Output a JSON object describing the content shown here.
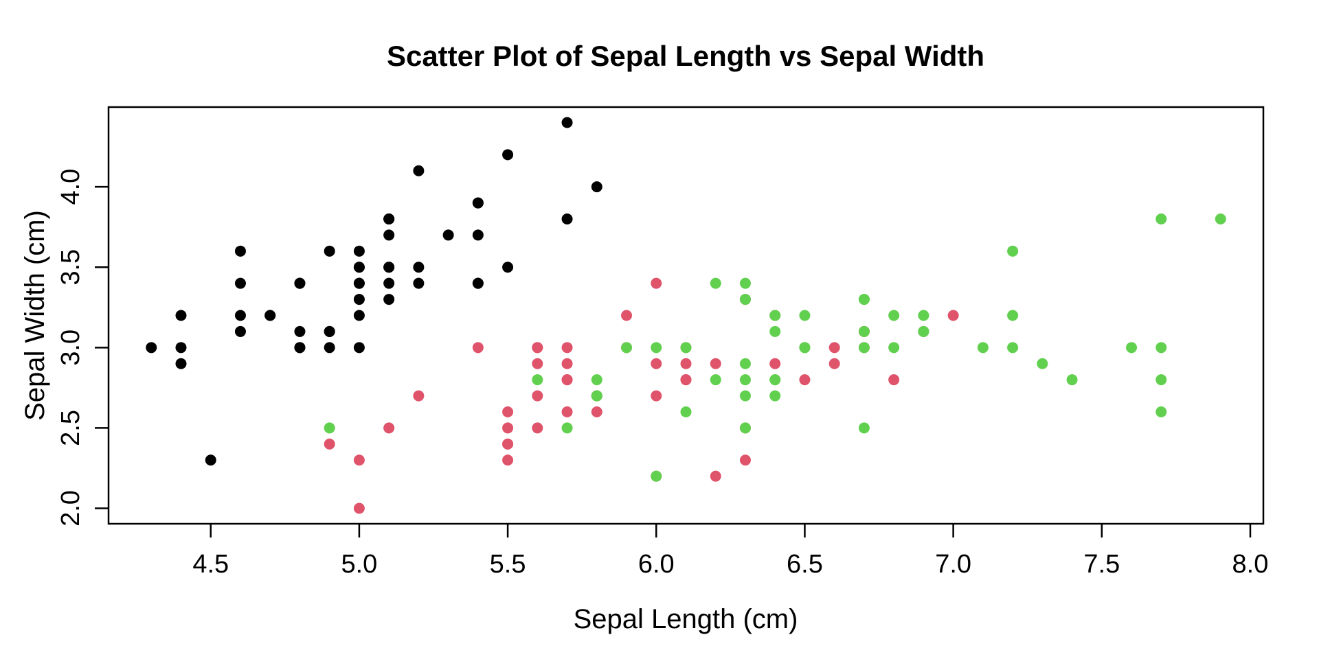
{
  "chart_data": {
    "type": "scatter",
    "title": "Scatter Plot of Sepal Length vs Sepal Width",
    "xlabel": "Sepal Length (cm)",
    "ylabel": "Sepal Width (cm)",
    "xlim": [
      4.156,
      8.044
    ],
    "ylim": [
      1.904,
      4.496
    ],
    "x_ticks": [
      4.5,
      5.0,
      5.5,
      6.0,
      6.5,
      7.0,
      7.5,
      8.0
    ],
    "y_ticks": [
      2.0,
      2.5,
      3.0,
      3.5,
      4.0
    ],
    "grid": false,
    "legend": "none",
    "marker": "filled-circle",
    "series": [
      {
        "name": "black",
        "color": "#000000",
        "points": [
          [
            5.1,
            3.5
          ],
          [
            4.9,
            3.0
          ],
          [
            4.7,
            3.2
          ],
          [
            4.6,
            3.1
          ],
          [
            5.0,
            3.6
          ],
          [
            5.4,
            3.9
          ],
          [
            4.6,
            3.4
          ],
          [
            5.0,
            3.4
          ],
          [
            4.4,
            2.9
          ],
          [
            4.9,
            3.1
          ],
          [
            5.4,
            3.7
          ],
          [
            4.8,
            3.4
          ],
          [
            4.8,
            3.0
          ],
          [
            4.3,
            3.0
          ],
          [
            5.8,
            4.0
          ],
          [
            5.7,
            4.4
          ],
          [
            5.4,
            3.9
          ],
          [
            5.1,
            3.5
          ],
          [
            5.7,
            3.8
          ],
          [
            5.1,
            3.8
          ],
          [
            5.4,
            3.4
          ],
          [
            5.1,
            3.7
          ],
          [
            4.6,
            3.6
          ],
          [
            5.1,
            3.3
          ],
          [
            4.8,
            3.4
          ],
          [
            5.0,
            3.0
          ],
          [
            5.0,
            3.4
          ],
          [
            5.2,
            3.5
          ],
          [
            5.2,
            3.4
          ],
          [
            4.7,
            3.2
          ],
          [
            4.8,
            3.1
          ],
          [
            5.4,
            3.4
          ],
          [
            5.2,
            4.1
          ],
          [
            5.5,
            4.2
          ],
          [
            4.9,
            3.1
          ],
          [
            5.0,
            3.2
          ],
          [
            5.5,
            3.5
          ],
          [
            4.9,
            3.6
          ],
          [
            4.4,
            3.0
          ],
          [
            5.1,
            3.4
          ],
          [
            5.0,
            3.5
          ],
          [
            4.5,
            2.3
          ],
          [
            4.4,
            3.2
          ],
          [
            5.0,
            3.5
          ],
          [
            5.1,
            3.8
          ],
          [
            4.8,
            3.0
          ],
          [
            5.1,
            3.8
          ],
          [
            4.6,
            3.2
          ],
          [
            5.3,
            3.7
          ],
          [
            5.0,
            3.3
          ]
        ]
      },
      {
        "name": "red",
        "color": "#DF536B",
        "points": [
          [
            7.0,
            3.2
          ],
          [
            6.4,
            3.2
          ],
          [
            6.9,
            3.1
          ],
          [
            5.5,
            2.3
          ],
          [
            6.5,
            2.8
          ],
          [
            5.7,
            2.8
          ],
          [
            6.3,
            3.3
          ],
          [
            4.9,
            2.4
          ],
          [
            6.6,
            2.9
          ],
          [
            5.2,
            2.7
          ],
          [
            5.0,
            2.0
          ],
          [
            5.9,
            3.0
          ],
          [
            6.0,
            2.2
          ],
          [
            6.1,
            2.9
          ],
          [
            5.6,
            2.9
          ],
          [
            6.7,
            3.1
          ],
          [
            5.6,
            3.0
          ],
          [
            5.8,
            2.7
          ],
          [
            6.2,
            2.2
          ],
          [
            5.6,
            2.5
          ],
          [
            5.9,
            3.2
          ],
          [
            6.1,
            2.8
          ],
          [
            6.3,
            2.5
          ],
          [
            6.1,
            2.8
          ],
          [
            6.4,
            2.9
          ],
          [
            6.6,
            3.0
          ],
          [
            6.8,
            2.8
          ],
          [
            6.7,
            3.0
          ],
          [
            6.0,
            2.9
          ],
          [
            5.7,
            2.6
          ],
          [
            5.5,
            2.4
          ],
          [
            5.5,
            2.4
          ],
          [
            5.8,
            2.7
          ],
          [
            6.0,
            2.7
          ],
          [
            5.4,
            3.0
          ],
          [
            6.0,
            3.4
          ],
          [
            6.7,
            3.1
          ],
          [
            6.3,
            2.3
          ],
          [
            5.6,
            3.0
          ],
          [
            5.5,
            2.5
          ],
          [
            5.5,
            2.6
          ],
          [
            6.1,
            3.0
          ],
          [
            5.8,
            2.6
          ],
          [
            5.0,
            2.3
          ],
          [
            5.6,
            2.7
          ],
          [
            5.7,
            3.0
          ],
          [
            5.7,
            2.9
          ],
          [
            6.2,
            2.9
          ],
          [
            5.1,
            2.5
          ],
          [
            5.7,
            2.8
          ]
        ]
      },
      {
        "name": "green",
        "color": "#61D04F",
        "points": [
          [
            6.3,
            3.3
          ],
          [
            5.8,
            2.7
          ],
          [
            7.1,
            3.0
          ],
          [
            6.3,
            2.9
          ],
          [
            6.5,
            3.0
          ],
          [
            7.6,
            3.0
          ],
          [
            4.9,
            2.5
          ],
          [
            7.3,
            2.9
          ],
          [
            6.7,
            2.5
          ],
          [
            7.2,
            3.6
          ],
          [
            6.5,
            3.2
          ],
          [
            6.4,
            2.7
          ],
          [
            6.8,
            3.0
          ],
          [
            5.7,
            2.5
          ],
          [
            5.8,
            2.8
          ],
          [
            6.4,
            3.2
          ],
          [
            6.5,
            3.0
          ],
          [
            7.7,
            3.8
          ],
          [
            7.7,
            2.6
          ],
          [
            6.0,
            2.2
          ],
          [
            6.9,
            3.2
          ],
          [
            5.6,
            2.8
          ],
          [
            7.7,
            2.8
          ],
          [
            6.3,
            2.7
          ],
          [
            6.7,
            3.3
          ],
          [
            7.2,
            3.2
          ],
          [
            6.2,
            2.8
          ],
          [
            6.1,
            3.0
          ],
          [
            6.4,
            2.8
          ],
          [
            7.2,
            3.0
          ],
          [
            7.4,
            2.8
          ],
          [
            7.9,
            3.8
          ],
          [
            6.4,
            2.8
          ],
          [
            6.3,
            2.8
          ],
          [
            6.1,
            2.6
          ],
          [
            7.7,
            3.0
          ],
          [
            6.3,
            3.4
          ],
          [
            6.4,
            3.1
          ],
          [
            6.0,
            3.0
          ],
          [
            6.9,
            3.1
          ],
          [
            6.7,
            3.1
          ],
          [
            6.9,
            3.1
          ],
          [
            5.8,
            2.7
          ],
          [
            6.8,
            3.2
          ],
          [
            6.7,
            3.3
          ],
          [
            6.7,
            3.0
          ],
          [
            6.3,
            2.5
          ],
          [
            6.5,
            3.0
          ],
          [
            6.2,
            3.4
          ],
          [
            5.9,
            3.0
          ]
        ]
      }
    ]
  }
}
